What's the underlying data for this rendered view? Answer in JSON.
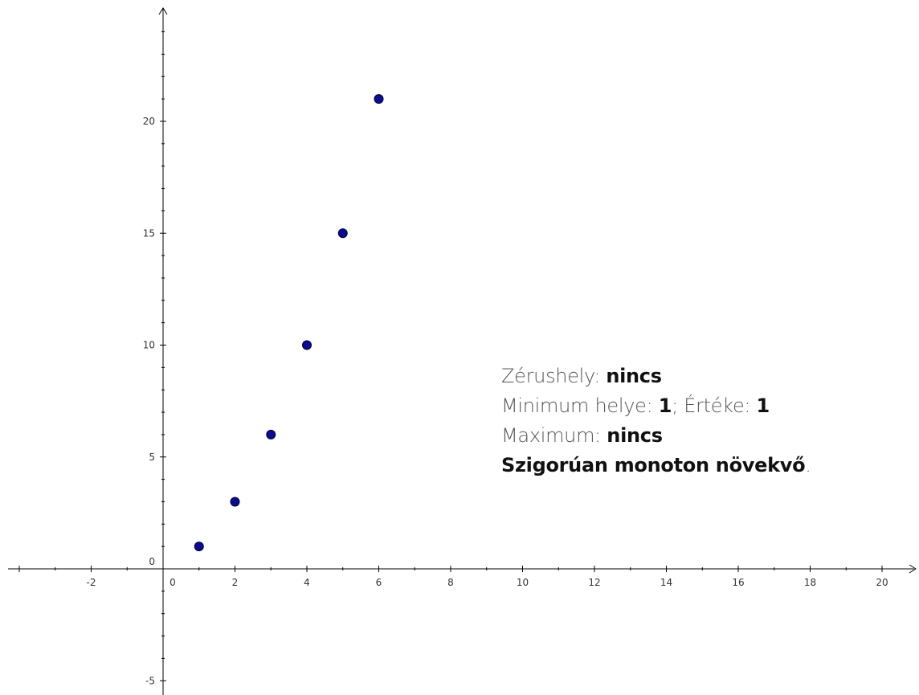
{
  "chart_data": {
    "type": "scatter",
    "title": "",
    "xlabel": "",
    "ylabel": "",
    "xlim": [
      -4,
      20.8
    ],
    "ylim": [
      -5,
      25
    ],
    "x_ticks": [
      -2,
      0,
      2,
      4,
      6,
      8,
      10,
      12,
      14,
      16,
      18,
      20
    ],
    "y_ticks": [
      -5,
      0,
      5,
      10,
      15,
      20
    ],
    "grid": false,
    "marker_color": "#0b0b8f",
    "axis_color": "#000000",
    "series": [
      {
        "x": [
          1,
          2,
          3,
          4,
          5,
          6
        ],
        "y": [
          1,
          3,
          6,
          10,
          15,
          21
        ]
      }
    ]
  },
  "annotation": {
    "zero_label": "Zérushely: ",
    "zero_value": "nincs",
    "min_label": "Minimum helye: ",
    "min_pos": "1",
    "min_sep": "; Értéke: ",
    "min_value": "1",
    "max_label": "Maximum: ",
    "max_value": "nincs",
    "monotonic_text": "Szigorúan monoton növekvő",
    "monotonic_end": "."
  }
}
